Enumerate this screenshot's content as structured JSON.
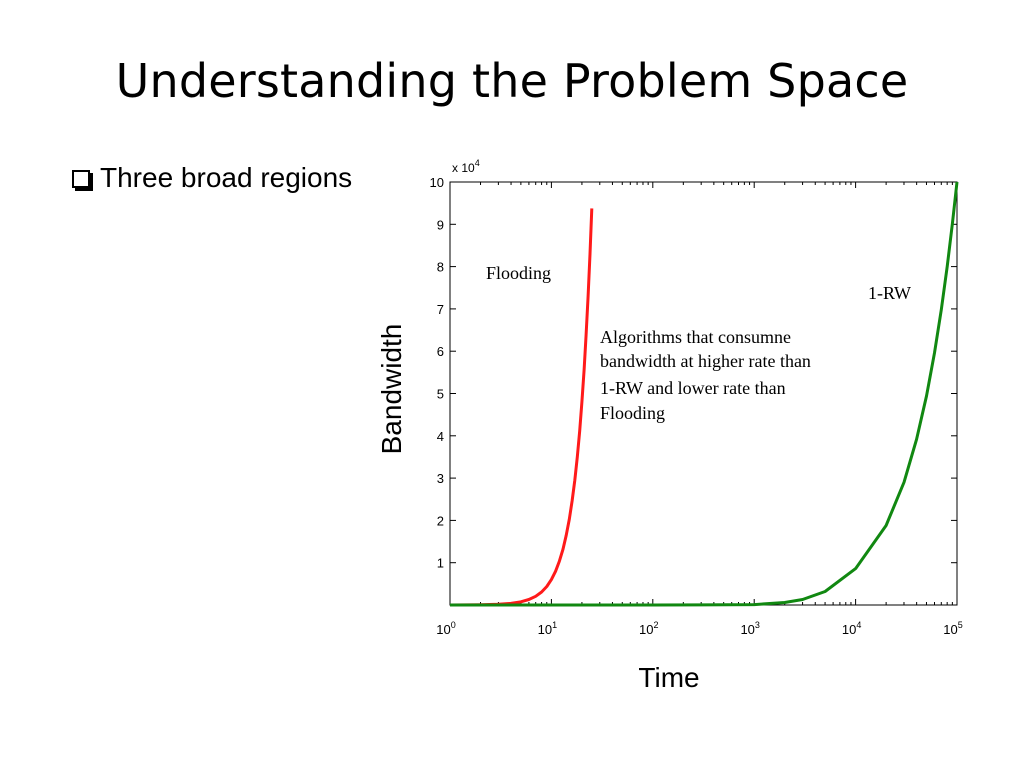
{
  "slide": {
    "title": "Understanding the Problem Space",
    "bullet": "Three broad regions"
  },
  "colors": {
    "flooding": "#ff1a1a",
    "one_rw": "#118811",
    "axis": "#000000"
  },
  "chart_data": {
    "type": "line",
    "xlabel": "Time",
    "ylabel": "Bandwidth",
    "xscale": "log",
    "xlim": [
      1,
      100000
    ],
    "ylim": [
      0,
      100000
    ],
    "y_multiplier_label": "x 10",
    "y_multiplier_exp": "4",
    "x_ticks": [
      {
        "base": "10",
        "exp": "0",
        "value": 1
      },
      {
        "base": "10",
        "exp": "1",
        "value": 10
      },
      {
        "base": "10",
        "exp": "2",
        "value": 100
      },
      {
        "base": "10",
        "exp": "3",
        "value": 1000
      },
      {
        "base": "10",
        "exp": "4",
        "value": 10000
      },
      {
        "base": "10",
        "exp": "5",
        "value": 100000
      }
    ],
    "y_ticks": [
      {
        "label": "1",
        "value": 10000
      },
      {
        "label": "2",
        "value": 20000
      },
      {
        "label": "3",
        "value": 30000
      },
      {
        "label": "4",
        "value": 40000
      },
      {
        "label": "5",
        "value": 50000
      },
      {
        "label": "6",
        "value": 60000
      },
      {
        "label": "7",
        "value": 70000
      },
      {
        "label": "8",
        "value": 80000
      },
      {
        "label": "9",
        "value": 90000
      },
      {
        "label": "10",
        "value": 100000
      }
    ],
    "grid": false,
    "series": [
      {
        "name": "Flooding",
        "x": [
          1,
          2,
          3,
          4,
          5,
          6,
          7,
          8,
          9,
          10,
          11,
          12,
          13,
          14,
          15,
          16,
          17,
          18,
          19,
          20,
          21,
          22,
          23,
          24,
          25
        ],
        "y": [
          6,
          48,
          162,
          384,
          750,
          1296,
          2058,
          3072,
          4374,
          6000,
          7986,
          10368,
          13182,
          16464,
          20250,
          24576,
          29478,
          34992,
          41154,
          48000,
          55566,
          63888,
          73002,
          82944,
          93750
        ]
      },
      {
        "name": "1-RW",
        "x": [
          1,
          10,
          100,
          300,
          1000,
          2000,
          3000,
          5000,
          10000,
          20000,
          30000,
          40000,
          50000,
          60000,
          70000,
          80000,
          90000,
          100000
        ],
        "y": [
          0,
          1,
          10,
          30,
          100,
          600,
          1300,
          3200,
          8600,
          18800,
          29000,
          39200,
          49400,
          59600,
          69800,
          80000,
          90200,
          100000
        ]
      }
    ],
    "annotations": {
      "flooding_label": "Flooding",
      "one_rw_label": "1-RW",
      "middle_region_lines": [
        "Algorithms that consumne",
        "bandwidth at higher rate than",
        "1-RW and lower rate than",
        "Flooding"
      ]
    }
  }
}
